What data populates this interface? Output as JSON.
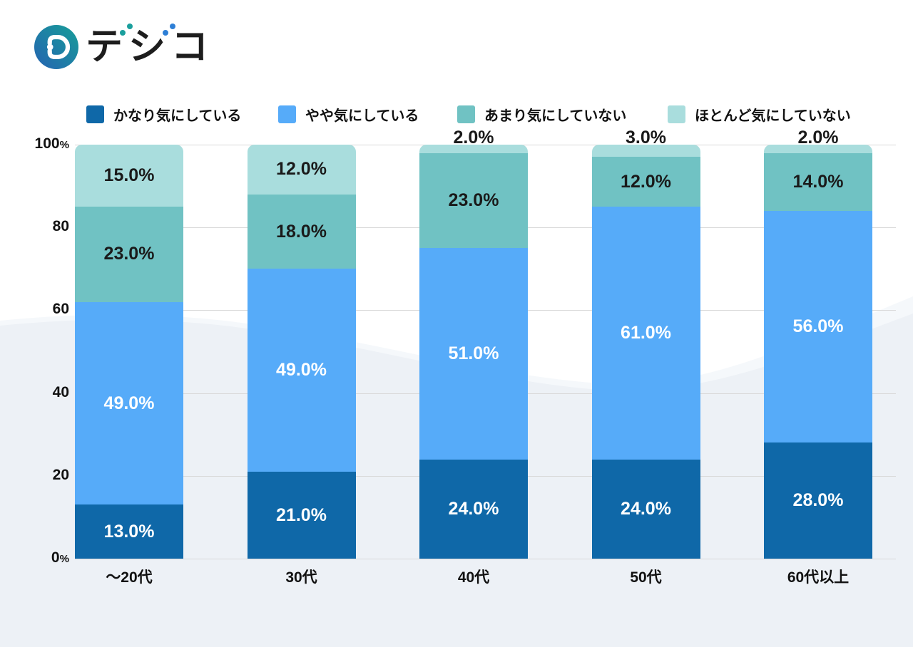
{
  "brand": {
    "name": "デジコ",
    "icon": "d-circle-logo-icon",
    "icon_gradient_start": "#2563b2",
    "icon_gradient_end": "#179e98",
    "dakuten_colors": {
      "デ": "#1a9f9d",
      "ジ": "#2e7fd6"
    },
    "text_color": "#1d1d1d"
  },
  "colors": {
    "background": "#ffffff",
    "wave_main": "#edf1f6",
    "wave_light": "#f5f8fb",
    "gridline": "#d9d9d9",
    "axis_text": "#111111"
  },
  "chart_data": {
    "type": "bar",
    "stacked": true,
    "orientation": "vertical",
    "categories": [
      "～20代",
      "30代",
      "40代",
      "50代",
      "60代以上"
    ],
    "series": [
      {
        "name": "かなり気にしている",
        "color": "#0f68a8",
        "label_color": "#ffffff",
        "values": [
          13,
          21,
          24,
          24,
          28
        ]
      },
      {
        "name": "やや気にしている",
        "color": "#56abf9",
        "label_color": "#ffffff",
        "values": [
          49,
          49,
          51,
          61,
          56
        ]
      },
      {
        "name": "あまり気にしていない",
        "color": "#70c2c3",
        "label_color": "#1a1a1a",
        "values": [
          23,
          18,
          23,
          12,
          14
        ]
      },
      {
        "name": "ほとんど気にしていない",
        "color": "#a9dddd",
        "label_color": "#1a1a1a",
        "values": [
          15,
          12,
          2,
          3,
          2
        ]
      }
    ],
    "data_labels": {
      "format": "one_decimal_percent",
      "examples": [
        "13.0%",
        "49.0%",
        "23.0%",
        "15.0%",
        "21.0%",
        "18.0%",
        "12.0%",
        "24.0%",
        "51.0%",
        "2.0%",
        "61.0%",
        "3.0%",
        "28.0%",
        "56.0%",
        "14.0%"
      ],
      "small_value_position": "above_bar"
    },
    "y_ticks": [
      {
        "value": 100,
        "label": "100",
        "suffix": "%"
      },
      {
        "value": 80,
        "label": "80",
        "suffix": ""
      },
      {
        "value": 60,
        "label": "60",
        "suffix": ""
      },
      {
        "value": 40,
        "label": "40",
        "suffix": ""
      },
      {
        "value": 20,
        "label": "20",
        "suffix": ""
      },
      {
        "value": 0,
        "label": "0",
        "suffix": "%"
      }
    ],
    "ylim": [
      0,
      100
    ],
    "grid": true,
    "legend_position": "top"
  }
}
